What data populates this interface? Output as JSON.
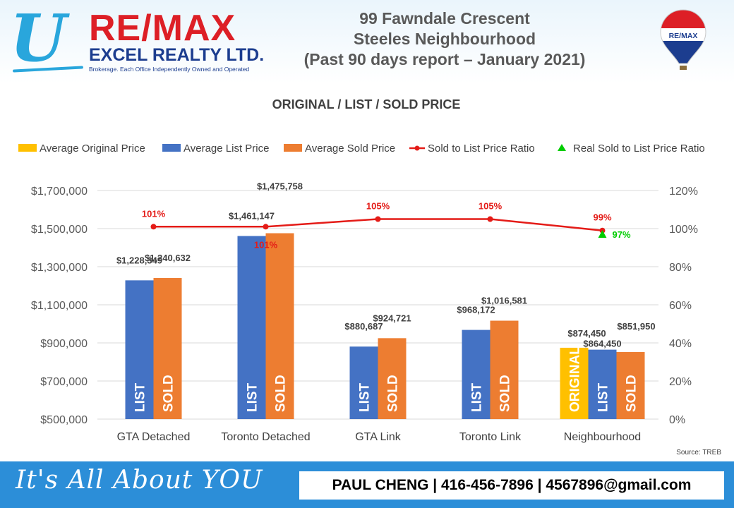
{
  "header": {
    "logo_u": "U",
    "brand": "RE/MAX",
    "company": "EXCEL REALTY LTD.",
    "company_tagline": "Brokerage. Each Office Independently Owned and Operated",
    "title_lines": [
      "99 Fawndale Crescent",
      "Steeles Neighbourhood",
      "(Past 90 days report – January 2021)"
    ],
    "balloon_text": "RE/MAX"
  },
  "chart_data": {
    "type": "bar",
    "title": "ORIGINAL / LIST / SOLD PRICE",
    "categories": [
      "GTA Detached",
      "Toronto Detached",
      "GTA Link",
      "Toronto Link",
      "Neighbourhood"
    ],
    "ylim": [
      500000,
      1700000
    ],
    "y_ticks": [
      500000,
      700000,
      900000,
      1100000,
      1300000,
      1500000,
      1700000
    ],
    "y_tick_labels": [
      "$500,000",
      "$700,000",
      "$900,000",
      "$1,100,000",
      "$1,300,000",
      "$1,500,000",
      "$1,700,000"
    ],
    "y2lim": [
      0,
      120
    ],
    "y2_tick_labels": [
      "0%",
      "20%",
      "40%",
      "60%",
      "80%",
      "100%",
      "120%"
    ],
    "colors": {
      "original": "#ffc000",
      "list": "#4472c4",
      "sold": "#ed7d31",
      "ratio": "#e41b17",
      "real_ratio": "#00cc00"
    },
    "series": [
      {
        "name": "Average Original Price",
        "key": "original",
        "values": [
          null,
          null,
          null,
          null,
          874450
        ],
        "labels": [
          null,
          null,
          null,
          null,
          "$874,450"
        ],
        "bar_text": "ORIGINAL"
      },
      {
        "name": "Average List Price",
        "key": "list",
        "values": [
          1228349,
          1461147,
          880687,
          968172,
          864450
        ],
        "labels": [
          "$1,228,349",
          "$1,461,147",
          "$880,687",
          "$968,172",
          "$864,450"
        ],
        "bar_text": "LIST"
      },
      {
        "name": "Average Sold Price",
        "key": "sold",
        "values": [
          1240632,
          1475758,
          924721,
          1016581,
          851950
        ],
        "labels": [
          "$1,240,632",
          "$1,475,758",
          "$924,721",
          "$1,016,581",
          "$851,950"
        ],
        "bar_text": "SOLD"
      }
    ],
    "ratio_series": {
      "name": "Sold to List Price Ratio",
      "values": [
        101,
        101,
        105,
        105,
        99
      ],
      "labels": [
        "101%",
        "101%",
        "105%",
        "105%",
        "99%"
      ]
    },
    "real_ratio_series": {
      "name": "Real Sold to List Price Ratio",
      "values": [
        null,
        null,
        null,
        null,
        97
      ],
      "labels": [
        null,
        null,
        null,
        null,
        "97%"
      ]
    },
    "legend_position": "top"
  },
  "source": "Source: TREB",
  "footer": {
    "tagline": "It's All About YOU",
    "contact": "PAUL CHENG | 416-456-7896 | 4567896@gmail.com"
  }
}
